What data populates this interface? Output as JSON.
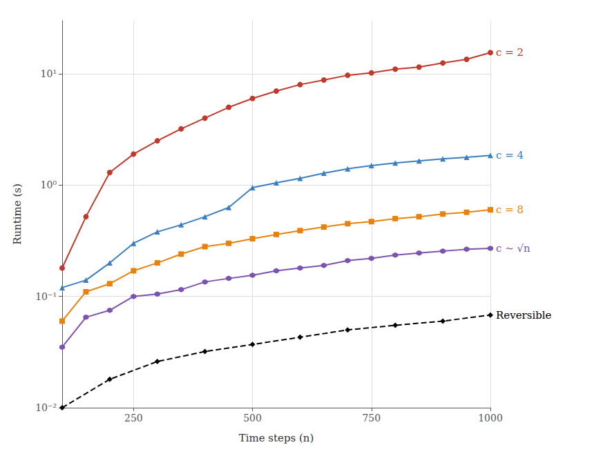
{
  "chart_data": {
    "type": "line",
    "xlabel": "Time steps (n)",
    "ylabel": "Runtime (s)",
    "log": "y",
    "grid": true,
    "xlim": [
      100,
      1000
    ],
    "ylim": [
      0.01,
      30
    ],
    "xticks": [
      250,
      500,
      750,
      1000
    ],
    "yticks": [
      {
        "value": 0.01,
        "label": "10⁻²"
      },
      {
        "value": 0.1,
        "label": "10⁻¹"
      },
      {
        "value": 1.0,
        "label": "10⁰"
      },
      {
        "value": 10.0,
        "label": "10¹"
      }
    ],
    "series": [
      {
        "name": "c = 2",
        "color": "#c0392b",
        "marker": "circle",
        "line_style": "solid",
        "x": [
          100,
          150,
          200,
          250,
          300,
          350,
          400,
          450,
          500,
          550,
          600,
          650,
          700,
          750,
          800,
          850,
          900,
          950,
          1000
        ],
        "values": [
          0.18,
          0.52,
          1.3,
          1.9,
          2.5,
          3.2,
          4.0,
          5.0,
          6.0,
          7.0,
          8.0,
          8.8,
          9.7,
          10.2,
          11.0,
          11.5,
          12.5,
          13.5,
          15.5
        ]
      },
      {
        "name": "c = 4",
        "color": "#3a7ebf",
        "marker": "triangle",
        "line_style": "solid",
        "x": [
          100,
          150,
          200,
          250,
          300,
          350,
          400,
          450,
          500,
          550,
          600,
          650,
          700,
          750,
          800,
          850,
          900,
          950,
          1000
        ],
        "values": [
          0.12,
          0.14,
          0.2,
          0.3,
          0.38,
          0.44,
          0.52,
          0.63,
          0.95,
          1.05,
          1.15,
          1.28,
          1.4,
          1.5,
          1.58,
          1.65,
          1.72,
          1.78,
          1.85
        ]
      },
      {
        "name": "c = 8",
        "color": "#e8820c",
        "marker": "square",
        "line_style": "solid",
        "x": [
          100,
          150,
          200,
          250,
          300,
          350,
          400,
          450,
          500,
          550,
          600,
          650,
          700,
          750,
          800,
          850,
          900,
          950,
          1000
        ],
        "values": [
          0.06,
          0.11,
          0.13,
          0.17,
          0.2,
          0.24,
          0.28,
          0.3,
          0.33,
          0.36,
          0.39,
          0.42,
          0.45,
          0.47,
          0.5,
          0.52,
          0.55,
          0.57,
          0.6
        ]
      },
      {
        "name": "c ∼ √n",
        "color": "#7b52ae",
        "marker": "hexagon",
        "line_style": "solid",
        "x": [
          100,
          150,
          200,
          250,
          300,
          350,
          400,
          450,
          500,
          550,
          600,
          650,
          700,
          750,
          800,
          850,
          900,
          950,
          1000
        ],
        "values": [
          0.035,
          0.065,
          0.075,
          0.1,
          0.105,
          0.115,
          0.135,
          0.145,
          0.155,
          0.17,
          0.18,
          0.19,
          0.21,
          0.22,
          0.235,
          0.245,
          0.255,
          0.265,
          0.27
        ]
      },
      {
        "name": "Reversible",
        "color": "#000000",
        "marker": "diamond",
        "line_style": "dashed",
        "x": [
          100,
          200,
          300,
          400,
          500,
          600,
          700,
          800,
          900,
          1000
        ],
        "values": [
          0.01,
          0.018,
          0.026,
          0.032,
          0.037,
          0.043,
          0.05,
          0.055,
          0.06,
          0.068
        ]
      }
    ]
  }
}
